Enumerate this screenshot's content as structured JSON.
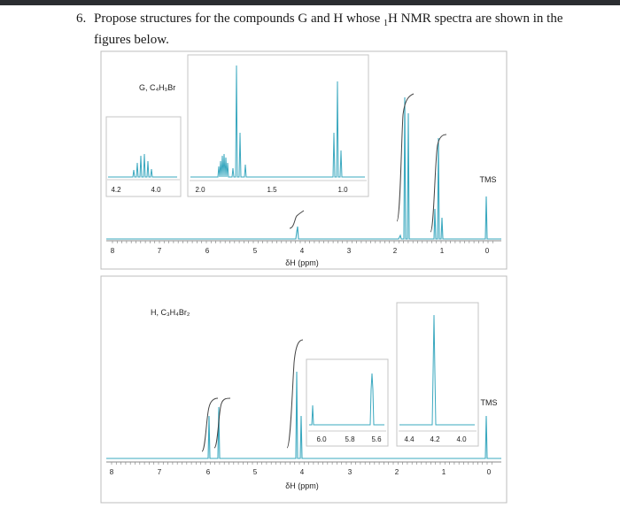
{
  "question": {
    "number": "6.",
    "line1_before": "Propose structures for the compounds G and H whose ",
    "nucleus_mass": "1",
    "line1_after": "H NMR spectra are shown in the",
    "line2": "figures below."
  },
  "spectrum_g": {
    "label": "G, C₄H₉Br",
    "axis_ticks": [
      "8",
      "7",
      "6",
      "5",
      "4",
      "3",
      "2",
      "1",
      "0"
    ],
    "axis_label": "δH (ppm)",
    "tms_label": "TMS",
    "inset_left_ticks": [
      "4.2",
      "4.0"
    ],
    "inset_center_ticks": [
      "2.0",
      "1.5",
      "1.0"
    ]
  },
  "spectrum_h": {
    "label": "H, C₃H₄Br₂",
    "axis_ticks": [
      "8",
      "7",
      "6",
      "5",
      "4",
      "3",
      "2",
      "1",
      "0"
    ],
    "axis_label": "δH (ppm)",
    "tms_label": "TMS",
    "inset_mid_ticks": [
      "6.0",
      "5.8",
      "5.6"
    ],
    "inset_right_ticks": [
      "4.4",
      "4.2",
      "4.0"
    ]
  },
  "colors": {
    "spectrum": "#3aa8bf",
    "frame": "#b9b9b9",
    "text": "#222222"
  }
}
